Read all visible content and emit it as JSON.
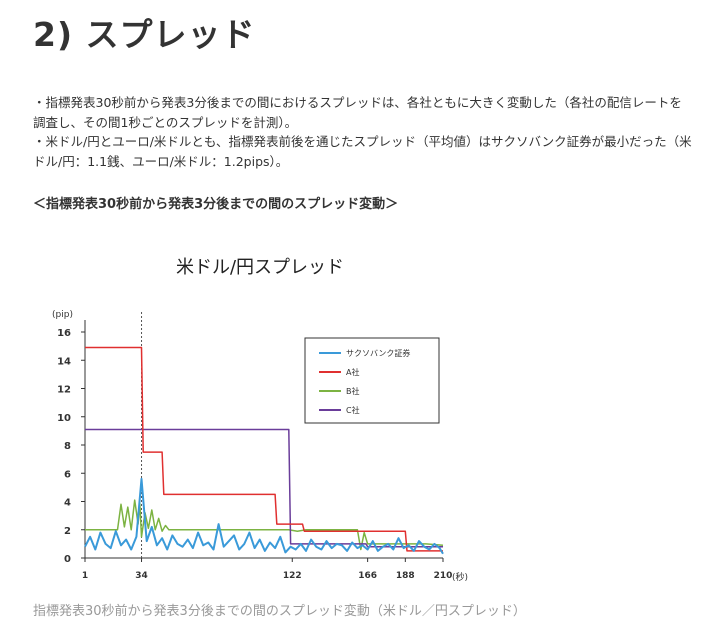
{
  "page": {
    "heading": "2) スプレッド",
    "bullets": [
      "・指標発表30秒前から発表3分後までの間におけるスプレッドは、各社ともに大きく変動した（各社の配信レートを調査し、その間1秒ごとのスプレッドを計測）。",
      "・米ドル/円とユーロ/米ドルとも、指標発表前後を通じたスプレッド（平均値）はサクソバンク証券が最小だった（米ドル/円：1.1銭、ユーロ/米ドル：1.2pips）。"
    ],
    "subheading": "＜指標発表30秒前から発表3分後までの間のスプレッド変動＞",
    "caption": "指標発表30秒前から発表3分後までの間のスプレッド変動（米ドル／円スプレッド）"
  },
  "chart_data": {
    "type": "line",
    "title": "米ドル/円スプレッド",
    "ylabel": "(pip)",
    "xlabel": "(秒)",
    "xlim": [
      1,
      210
    ],
    "ylim": [
      0,
      16
    ],
    "x_ticks": [
      1,
      34,
      122,
      166,
      188,
      210
    ],
    "y_ticks": [
      0,
      2,
      4,
      6,
      8,
      10,
      12,
      14,
      16
    ],
    "marker_line_x": 34,
    "legend_position": "top-right",
    "colors": {
      "saxo": "#3a9ad9",
      "a": "#e03030",
      "b": "#7cb342",
      "c": "#6a3d9a"
    },
    "series": [
      {
        "name": "サクソバンク証券",
        "x": [
          1,
          4,
          7,
          10,
          13,
          16,
          19,
          22,
          25,
          28,
          31,
          34,
          37,
          40,
          43,
          46,
          49,
          52,
          55,
          58,
          61,
          64,
          67,
          70,
          73,
          76,
          79,
          82,
          85,
          88,
          91,
          94,
          97,
          100,
          103,
          106,
          109,
          112,
          115,
          118,
          121,
          124,
          127,
          130,
          133,
          136,
          139,
          142,
          145,
          148,
          151,
          154,
          157,
          160,
          163,
          166,
          169,
          172,
          175,
          178,
          181,
          184,
          187,
          190,
          193,
          196,
          199,
          202,
          205,
          208,
          210
        ],
        "values": [
          0.8,
          1.5,
          0.6,
          1.8,
          1.0,
          0.7,
          1.9,
          0.9,
          1.3,
          0.6,
          1.5,
          5.6,
          1.2,
          2.2,
          0.9,
          1.4,
          0.6,
          1.6,
          1.0,
          0.8,
          1.3,
          0.7,
          1.8,
          0.9,
          1.1,
          0.6,
          2.4,
          0.8,
          1.2,
          1.6,
          0.6,
          1.0,
          1.8,
          0.7,
          1.3,
          0.5,
          1.1,
          0.7,
          1.5,
          0.4,
          0.8,
          0.6,
          1.0,
          0.5,
          1.3,
          0.8,
          0.6,
          1.2,
          0.7,
          1.0,
          0.9,
          0.5,
          1.1,
          0.7,
          0.9,
          0.6,
          1.2,
          0.5,
          0.8,
          1.0,
          0.6,
          1.4,
          0.7,
          0.9,
          0.5,
          1.2,
          0.8,
          0.6,
          1.0,
          0.7,
          0.3
        ]
      },
      {
        "name": "A社",
        "step": true,
        "x": [
          1,
          34,
          35,
          46,
          47,
          112,
          113,
          128,
          129,
          188,
          189,
          210
        ],
        "values": [
          14.9,
          14.9,
          7.5,
          7.5,
          4.5,
          4.5,
          2.4,
          2.4,
          1.9,
          1.9,
          0.5,
          0.5
        ]
      },
      {
        "name": "B社",
        "x": [
          1,
          20,
          22,
          24,
          26,
          28,
          30,
          32,
          33,
          34,
          36,
          38,
          40,
          42,
          44,
          46,
          48,
          50,
          80,
          110,
          120,
          125,
          130,
          150,
          160,
          162,
          164,
          166,
          170,
          180,
          190,
          200,
          210
        ],
        "values": [
          2.0,
          2.0,
          3.8,
          2.2,
          3.6,
          2.0,
          4.1,
          2.4,
          3.9,
          1.5,
          3.2,
          2.1,
          3.4,
          2.0,
          2.8,
          1.9,
          2.3,
          2.0,
          2.0,
          2.0,
          2.0,
          1.9,
          2.0,
          2.0,
          2.0,
          0.6,
          1.8,
          1.0,
          1.0,
          1.0,
          1.0,
          1.0,
          0.9
        ]
      },
      {
        "name": "C社",
        "step": true,
        "x": [
          1,
          120,
          121,
          165,
          166,
          210
        ],
        "values": [
          9.1,
          9.1,
          1.0,
          1.0,
          0.8,
          0.8
        ]
      }
    ]
  }
}
